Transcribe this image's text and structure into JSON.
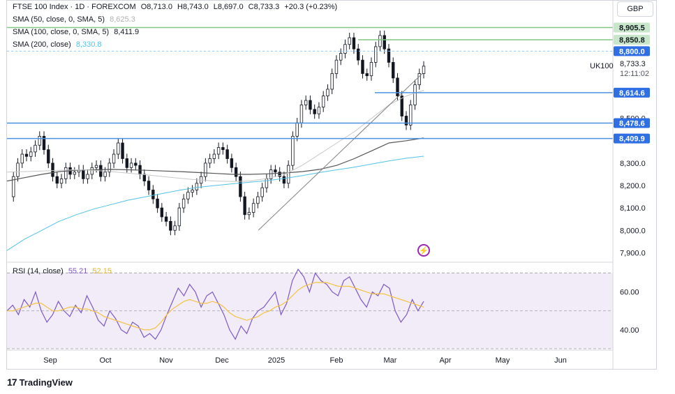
{
  "header": {
    "symbol": "FTSE 100 Index · 1D · FOREXCOM",
    "ohlc": {
      "o": "O8,713.0",
      "h": "H8,743.0",
      "l": "L8,697.0",
      "c": "C8,733.3",
      "chg": "+20.3 (+0.23%)"
    },
    "currency": "GBP"
  },
  "indicators": [
    {
      "label": "SMA (50, close, 0, SMA, 5)",
      "value": "8,625.3",
      "color": "#c8c8c8"
    },
    {
      "label": "SMA (100, close, 0, SMA, 5)",
      "value": "8,411.9",
      "color": "#555555"
    },
    {
      "label": "SMA (200, close)",
      "value": "8,330.8",
      "color": "#4fc3e8"
    }
  ],
  "rsi_legend": {
    "label": "RSI (14, close)",
    "rsi": "55.21",
    "ma": "52.15",
    "rsi_color": "#7e57c2",
    "ma_color": "#f5c242"
  },
  "price_badges": [
    {
      "label": "8,905.5",
      "value": 8905.5,
      "kind": "green"
    },
    {
      "label": "8,850.8",
      "value": 8850.8,
      "kind": "green"
    },
    {
      "label": "8,800.0",
      "value": 8800.0,
      "kind": "dashed"
    },
    {
      "label": "8,614.6",
      "value": 8614.6,
      "kind": "blue"
    },
    {
      "label": "8,478.6",
      "value": 8478.6,
      "kind": "blue"
    },
    {
      "label": "8,409.9",
      "value": 8409.9,
      "kind": "blue"
    }
  ],
  "last_price": {
    "ticker": "UK100",
    "price": "8,733.3",
    "countdown": "12:11:02"
  },
  "watermark": "TradingView",
  "chart_data": {
    "type": "candlestick",
    "title": "FTSE 100 Index · 1D · FOREXCOM",
    "y_ticks": [
      "8,500.0",
      "8,300.0",
      "8,200.0",
      "8,100.0",
      "8,000.0",
      "7,900.0"
    ],
    "y_tick_values": [
      8500,
      8300,
      8200,
      8100,
      8000,
      7900
    ],
    "ylim": [
      7870,
      8935
    ],
    "x_ticks": [
      "Sep",
      "Oct",
      "Nov",
      "Dec",
      "2025",
      "Feb",
      "Mar",
      "Apr",
      "May",
      "Jun"
    ],
    "close_path": [
      8150,
      8240,
      8300,
      8340,
      8330,
      8350,
      8380,
      8420,
      8360,
      8300,
      8240,
      8210,
      8230,
      8280,
      8250,
      8260,
      8270,
      8230,
      8250,
      8280,
      8290,
      8240,
      8260,
      8300,
      8340,
      8390,
      8320,
      8280,
      8300,
      8290,
      8250,
      8220,
      8180,
      8140,
      8100,
      8060,
      8040,
      8000,
      8020,
      8100,
      8140,
      8170,
      8180,
      8210,
      8240,
      8300,
      8320,
      8340,
      8370,
      8360,
      8320,
      8280,
      8240,
      8150,
      8070,
      8080,
      8120,
      8150,
      8190,
      8230,
      8270,
      8260,
      8240,
      8210,
      8290,
      8420,
      8480,
      8560,
      8580,
      8540,
      8520,
      8550,
      8600,
      8630,
      8700,
      8760,
      8790,
      8830,
      8860,
      8810,
      8760,
      8700,
      8690,
      8750,
      8820,
      8870,
      8810,
      8750,
      8680,
      8600,
      8510,
      8470,
      8560,
      8650,
      8700,
      8733
    ],
    "sma50_path": [
      8260,
      8262,
      8265,
      8268,
      8270,
      8268,
      8262,
      8255,
      8248,
      8240,
      8232,
      8225,
      8220,
      8218,
      8220,
      8232,
      8250,
      8290,
      8340,
      8390,
      8440,
      8500,
      8560,
      8600,
      8625
    ],
    "sma100_path": [
      8220,
      8235,
      8250,
      8262,
      8268,
      8270,
      8272,
      8270,
      8268,
      8265,
      8262,
      8258,
      8254,
      8250,
      8250,
      8252,
      8256,
      8262,
      8272,
      8290,
      8320,
      8355,
      8390,
      8400,
      8412
    ],
    "sma200_path": [
      7910,
      7960,
      8000,
      8040,
      8070,
      8095,
      8115,
      8135,
      8150,
      8165,
      8180,
      8192,
      8200,
      8208,
      8215,
      8222,
      8232,
      8244,
      8258,
      8270,
      8282,
      8296,
      8310,
      8322,
      8331
    ],
    "trendlines": [
      [
        8000,
        8700
      ]
    ],
    "rsi": {
      "y_ticks": [
        "60.00",
        "40.00"
      ],
      "y_tick_values": [
        60,
        40
      ],
      "ylim": [
        30,
        75
      ],
      "band": [
        30,
        70
      ],
      "midline": 50,
      "rsi_path": [
        50,
        53,
        48,
        56,
        52,
        60,
        50,
        44,
        48,
        55,
        50,
        47,
        53,
        49,
        58,
        52,
        45,
        42,
        50,
        46,
        40,
        38,
        44,
        42,
        36,
        38,
        35,
        40,
        48,
        55,
        62,
        58,
        64,
        60,
        52,
        58,
        60,
        54,
        48,
        40,
        35,
        42,
        38,
        46,
        50,
        52,
        56,
        60,
        48,
        54,
        66,
        72,
        68,
        60,
        70,
        66,
        64,
        60,
        58,
        66,
        68,
        62,
        56,
        52,
        60,
        58,
        64,
        62,
        50,
        44,
        48,
        56,
        50,
        55
      ],
      "ma_path": [
        50,
        50,
        51,
        52,
        53,
        54,
        54,
        52,
        50,
        50,
        51,
        52,
        52,
        51,
        51,
        50,
        49,
        47,
        46,
        45,
        44,
        43,
        42,
        41,
        40,
        40,
        41,
        44,
        48,
        51,
        53,
        55,
        56,
        55,
        54,
        54,
        55,
        54,
        52,
        49,
        47,
        46,
        45,
        46,
        47,
        49,
        50,
        52,
        53,
        55,
        58,
        61,
        63,
        64,
        65,
        65,
        65,
        64,
        63,
        63,
        63,
        62,
        61,
        60,
        59,
        59,
        59,
        58,
        57,
        56,
        55,
        54,
        53,
        52
      ]
    }
  }
}
